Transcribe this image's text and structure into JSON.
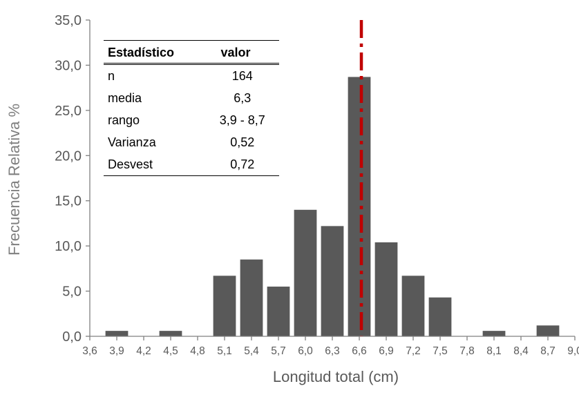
{
  "chart_data": {
    "type": "bar",
    "xlabel": "Longitud total (cm)",
    "ylabel": "Frecuencia Relativa %",
    "ylim": [
      0,
      35
    ],
    "yticks": [
      "0,0",
      "5,0",
      "10,0",
      "15,0",
      "20,0",
      "25,0",
      "30,0",
      "35,0"
    ],
    "xticks": [
      "3,6",
      "3,9",
      "4,2",
      "4,5",
      "4,8",
      "5,1",
      "5,4",
      "5,7",
      "6,0",
      "6,3",
      "6,6",
      "6,9",
      "7,2",
      "7,5",
      "7,8",
      "8,1",
      "8,4",
      "8,7",
      "9,0"
    ],
    "x_range": [
      3.6,
      9.0
    ],
    "bars": [
      {
        "x": 3.9,
        "value": 0.6
      },
      {
        "x": 4.5,
        "value": 0.6
      },
      {
        "x": 5.1,
        "value": 6.7
      },
      {
        "x": 5.4,
        "value": 8.5
      },
      {
        "x": 5.7,
        "value": 5.5
      },
      {
        "x": 6.0,
        "value": 14.0
      },
      {
        "x": 6.3,
        "value": 12.2
      },
      {
        "x": 6.6,
        "value": 28.7
      },
      {
        "x": 6.9,
        "value": 10.4
      },
      {
        "x": 7.2,
        "value": 6.7
      },
      {
        "x": 7.5,
        "value": 4.3
      },
      {
        "x": 8.1,
        "value": 0.6
      },
      {
        "x": 8.7,
        "value": 1.2
      }
    ],
    "reference_line": {
      "x": 6.6,
      "style": "dash-dot",
      "color": "#c00000"
    },
    "bar_color": "#595959",
    "grid": false
  },
  "stats_table": {
    "header": {
      "col1": "Estadístico",
      "col2": "valor"
    },
    "rows": [
      {
        "label": "n",
        "value": "164"
      },
      {
        "label": "media",
        "value": "6,3"
      },
      {
        "label": "rango",
        "value": "3,9 - 8,7"
      },
      {
        "label": "Varianza",
        "value": "0,52"
      },
      {
        "label": "Desvest",
        "value": "0,72"
      }
    ]
  }
}
